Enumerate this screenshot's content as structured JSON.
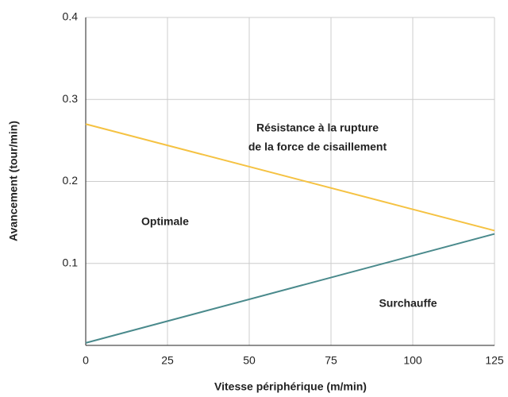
{
  "chart_data": {
    "type": "line",
    "x": [
      0,
      125
    ],
    "series": [
      {
        "color": "#f5c242",
        "values": [
          0.27,
          0.14
        ]
      },
      {
        "color": "#4a8a8c",
        "values": [
          0.003,
          0.136
        ]
      }
    ],
    "xlabel": "Vitesse périphérique (m/min)",
    "ylabel": "Avancement (tour/min)",
    "xlim": [
      0,
      125
    ],
    "xticks": [
      0,
      25,
      50,
      75,
      100,
      125
    ],
    "ylim": [
      0,
      0.4
    ],
    "yticks": [
      0.1,
      0.2,
      0.3,
      0.4
    ],
    "grid": true,
    "annotations": [
      "Résistance à la rupture",
      "de la force de cisaillement",
      "Optimale",
      "Surchauffe"
    ]
  }
}
